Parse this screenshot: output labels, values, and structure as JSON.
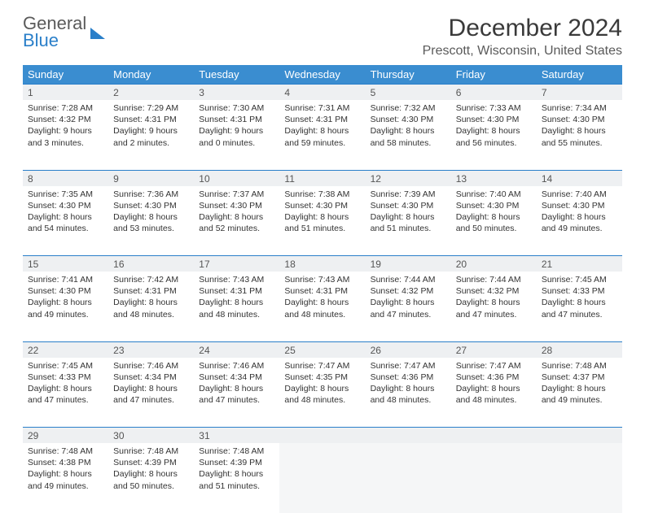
{
  "brand": {
    "general": "General",
    "blue": "Blue"
  },
  "title": "December 2024",
  "location": "Prescott, Wisconsin, United States",
  "colors": {
    "header_bg": "#3a8dd0",
    "accent": "#2a7fc9",
    "daynum_bg": "#eef0f2",
    "text": "#333333"
  },
  "weekdays": [
    "Sunday",
    "Monday",
    "Tuesday",
    "Wednesday",
    "Thursday",
    "Friday",
    "Saturday"
  ],
  "weeks": [
    [
      {
        "day": "1",
        "sunrise": "Sunrise: 7:28 AM",
        "sunset": "Sunset: 4:32 PM",
        "daylight": "Daylight: 9 hours and 3 minutes."
      },
      {
        "day": "2",
        "sunrise": "Sunrise: 7:29 AM",
        "sunset": "Sunset: 4:31 PM",
        "daylight": "Daylight: 9 hours and 2 minutes."
      },
      {
        "day": "3",
        "sunrise": "Sunrise: 7:30 AM",
        "sunset": "Sunset: 4:31 PM",
        "daylight": "Daylight: 9 hours and 0 minutes."
      },
      {
        "day": "4",
        "sunrise": "Sunrise: 7:31 AM",
        "sunset": "Sunset: 4:31 PM",
        "daylight": "Daylight: 8 hours and 59 minutes."
      },
      {
        "day": "5",
        "sunrise": "Sunrise: 7:32 AM",
        "sunset": "Sunset: 4:30 PM",
        "daylight": "Daylight: 8 hours and 58 minutes."
      },
      {
        "day": "6",
        "sunrise": "Sunrise: 7:33 AM",
        "sunset": "Sunset: 4:30 PM",
        "daylight": "Daylight: 8 hours and 56 minutes."
      },
      {
        "day": "7",
        "sunrise": "Sunrise: 7:34 AM",
        "sunset": "Sunset: 4:30 PM",
        "daylight": "Daylight: 8 hours and 55 minutes."
      }
    ],
    [
      {
        "day": "8",
        "sunrise": "Sunrise: 7:35 AM",
        "sunset": "Sunset: 4:30 PM",
        "daylight": "Daylight: 8 hours and 54 minutes."
      },
      {
        "day": "9",
        "sunrise": "Sunrise: 7:36 AM",
        "sunset": "Sunset: 4:30 PM",
        "daylight": "Daylight: 8 hours and 53 minutes."
      },
      {
        "day": "10",
        "sunrise": "Sunrise: 7:37 AM",
        "sunset": "Sunset: 4:30 PM",
        "daylight": "Daylight: 8 hours and 52 minutes."
      },
      {
        "day": "11",
        "sunrise": "Sunrise: 7:38 AM",
        "sunset": "Sunset: 4:30 PM",
        "daylight": "Daylight: 8 hours and 51 minutes."
      },
      {
        "day": "12",
        "sunrise": "Sunrise: 7:39 AM",
        "sunset": "Sunset: 4:30 PM",
        "daylight": "Daylight: 8 hours and 51 minutes."
      },
      {
        "day": "13",
        "sunrise": "Sunrise: 7:40 AM",
        "sunset": "Sunset: 4:30 PM",
        "daylight": "Daylight: 8 hours and 50 minutes."
      },
      {
        "day": "14",
        "sunrise": "Sunrise: 7:40 AM",
        "sunset": "Sunset: 4:30 PM",
        "daylight": "Daylight: 8 hours and 49 minutes."
      }
    ],
    [
      {
        "day": "15",
        "sunrise": "Sunrise: 7:41 AM",
        "sunset": "Sunset: 4:30 PM",
        "daylight": "Daylight: 8 hours and 49 minutes."
      },
      {
        "day": "16",
        "sunrise": "Sunrise: 7:42 AM",
        "sunset": "Sunset: 4:31 PM",
        "daylight": "Daylight: 8 hours and 48 minutes."
      },
      {
        "day": "17",
        "sunrise": "Sunrise: 7:43 AM",
        "sunset": "Sunset: 4:31 PM",
        "daylight": "Daylight: 8 hours and 48 minutes."
      },
      {
        "day": "18",
        "sunrise": "Sunrise: 7:43 AM",
        "sunset": "Sunset: 4:31 PM",
        "daylight": "Daylight: 8 hours and 48 minutes."
      },
      {
        "day": "19",
        "sunrise": "Sunrise: 7:44 AM",
        "sunset": "Sunset: 4:32 PM",
        "daylight": "Daylight: 8 hours and 47 minutes."
      },
      {
        "day": "20",
        "sunrise": "Sunrise: 7:44 AM",
        "sunset": "Sunset: 4:32 PM",
        "daylight": "Daylight: 8 hours and 47 minutes."
      },
      {
        "day": "21",
        "sunrise": "Sunrise: 7:45 AM",
        "sunset": "Sunset: 4:33 PM",
        "daylight": "Daylight: 8 hours and 47 minutes."
      }
    ],
    [
      {
        "day": "22",
        "sunrise": "Sunrise: 7:45 AM",
        "sunset": "Sunset: 4:33 PM",
        "daylight": "Daylight: 8 hours and 47 minutes."
      },
      {
        "day": "23",
        "sunrise": "Sunrise: 7:46 AM",
        "sunset": "Sunset: 4:34 PM",
        "daylight": "Daylight: 8 hours and 47 minutes."
      },
      {
        "day": "24",
        "sunrise": "Sunrise: 7:46 AM",
        "sunset": "Sunset: 4:34 PM",
        "daylight": "Daylight: 8 hours and 47 minutes."
      },
      {
        "day": "25",
        "sunrise": "Sunrise: 7:47 AM",
        "sunset": "Sunset: 4:35 PM",
        "daylight": "Daylight: 8 hours and 48 minutes."
      },
      {
        "day": "26",
        "sunrise": "Sunrise: 7:47 AM",
        "sunset": "Sunset: 4:36 PM",
        "daylight": "Daylight: 8 hours and 48 minutes."
      },
      {
        "day": "27",
        "sunrise": "Sunrise: 7:47 AM",
        "sunset": "Sunset: 4:36 PM",
        "daylight": "Daylight: 8 hours and 48 minutes."
      },
      {
        "day": "28",
        "sunrise": "Sunrise: 7:48 AM",
        "sunset": "Sunset: 4:37 PM",
        "daylight": "Daylight: 8 hours and 49 minutes."
      }
    ],
    [
      {
        "day": "29",
        "sunrise": "Sunrise: 7:48 AM",
        "sunset": "Sunset: 4:38 PM",
        "daylight": "Daylight: 8 hours and 49 minutes."
      },
      {
        "day": "30",
        "sunrise": "Sunrise: 7:48 AM",
        "sunset": "Sunset: 4:39 PM",
        "daylight": "Daylight: 8 hours and 50 minutes."
      },
      {
        "day": "31",
        "sunrise": "Sunrise: 7:48 AM",
        "sunset": "Sunset: 4:39 PM",
        "daylight": "Daylight: 8 hours and 51 minutes."
      },
      null,
      null,
      null,
      null
    ]
  ]
}
